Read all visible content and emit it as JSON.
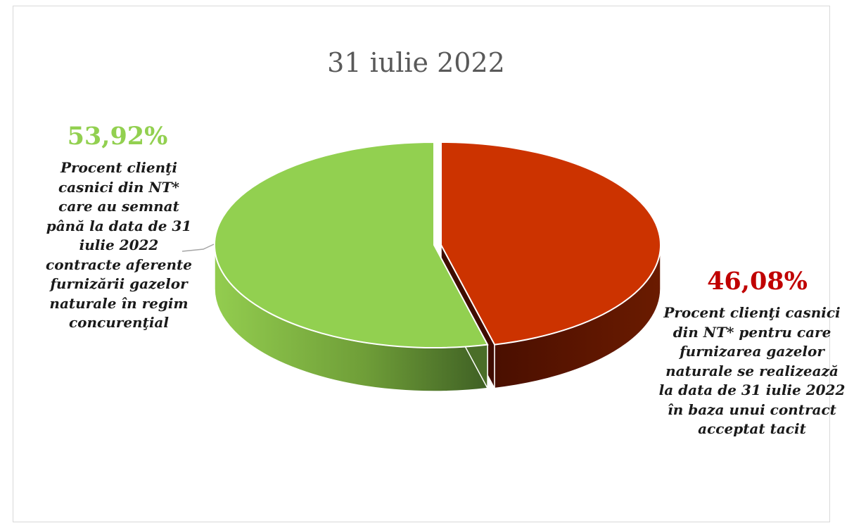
{
  "chart_data": {
    "type": "pie",
    "title": "31 iulie 2022",
    "slices": [
      {
        "value": 53.92,
        "value_label": "53,92%",
        "label": "Procent clienţi casnici din NT* care au semnat până la data de 31 iulie 2022 contracte aferente furnizării gazelor naturale în regim concurenţial",
        "label_lines": [
          "Procent clienţi",
          "casnici din NT*",
          "care au semnat",
          "până la data de 31",
          "iulie 2022",
          "contracte aferente",
          "furnizării gazelor",
          "naturale în regim",
          "concurenţial"
        ],
        "color": "#92d050",
        "label_color": "#92d050"
      },
      {
        "value": 46.08,
        "value_label": "46,08%",
        "label": "Procent clienţi casnici din NT* pentru care furnizarea gazelor naturale se realizează la data de 31 iulie 2022 în baza unui contract acceptat tacit",
        "label_lines": [
          "Procent clienţi casnici",
          "din NT* pentru care",
          "furnizarea gazelor",
          "naturale se realizează",
          "la data de 31 iulie 2022",
          "în baza unui contract",
          "acceptat tacit"
        ],
        "color": "#cc3300",
        "label_color": "#c00000"
      }
    ],
    "style": "3d-exploded",
    "legend": "none"
  }
}
